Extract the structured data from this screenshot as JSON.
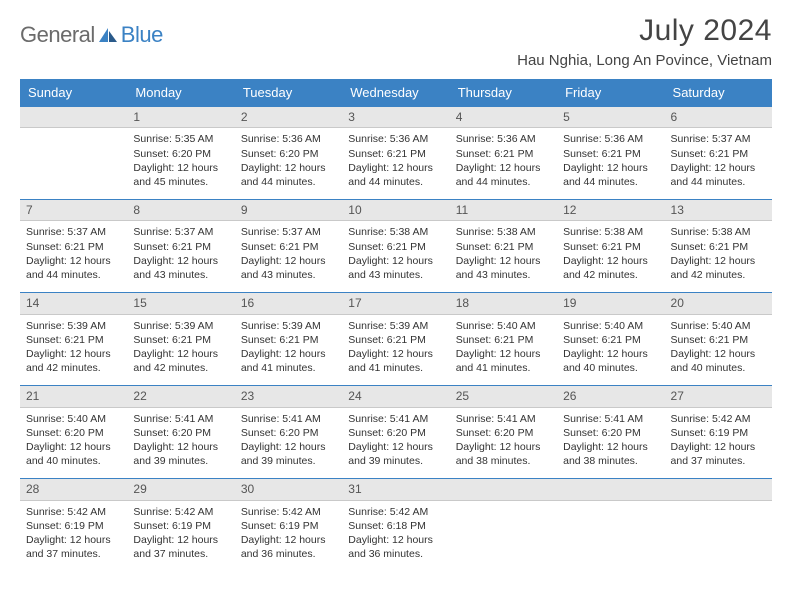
{
  "logo": {
    "prefix": "General",
    "suffix": "Blue"
  },
  "title": "July 2024",
  "subtitle": "Hau Nghia, Long An Povince, Vietnam",
  "colors": {
    "header_bg": "#3b82c4",
    "header_text": "#ffffff",
    "daynum_bg": "#e7e7e7",
    "border_top": "#3b82c4",
    "text": "#333333"
  },
  "weekdays": [
    "Sunday",
    "Monday",
    "Tuesday",
    "Wednesday",
    "Thursday",
    "Friday",
    "Saturday"
  ],
  "weeks": [
    {
      "nums": [
        "",
        "1",
        "2",
        "3",
        "4",
        "5",
        "6"
      ],
      "cells": [
        [],
        [
          "Sunrise: 5:35 AM",
          "Sunset: 6:20 PM",
          "Daylight: 12 hours",
          "and 45 minutes."
        ],
        [
          "Sunrise: 5:36 AM",
          "Sunset: 6:20 PM",
          "Daylight: 12 hours",
          "and 44 minutes."
        ],
        [
          "Sunrise: 5:36 AM",
          "Sunset: 6:21 PM",
          "Daylight: 12 hours",
          "and 44 minutes."
        ],
        [
          "Sunrise: 5:36 AM",
          "Sunset: 6:21 PM",
          "Daylight: 12 hours",
          "and 44 minutes."
        ],
        [
          "Sunrise: 5:36 AM",
          "Sunset: 6:21 PM",
          "Daylight: 12 hours",
          "and 44 minutes."
        ],
        [
          "Sunrise: 5:37 AM",
          "Sunset: 6:21 PM",
          "Daylight: 12 hours",
          "and 44 minutes."
        ]
      ]
    },
    {
      "nums": [
        "7",
        "8",
        "9",
        "10",
        "11",
        "12",
        "13"
      ],
      "cells": [
        [
          "Sunrise: 5:37 AM",
          "Sunset: 6:21 PM",
          "Daylight: 12 hours",
          "and 44 minutes."
        ],
        [
          "Sunrise: 5:37 AM",
          "Sunset: 6:21 PM",
          "Daylight: 12 hours",
          "and 43 minutes."
        ],
        [
          "Sunrise: 5:37 AM",
          "Sunset: 6:21 PM",
          "Daylight: 12 hours",
          "and 43 minutes."
        ],
        [
          "Sunrise: 5:38 AM",
          "Sunset: 6:21 PM",
          "Daylight: 12 hours",
          "and 43 minutes."
        ],
        [
          "Sunrise: 5:38 AM",
          "Sunset: 6:21 PM",
          "Daylight: 12 hours",
          "and 43 minutes."
        ],
        [
          "Sunrise: 5:38 AM",
          "Sunset: 6:21 PM",
          "Daylight: 12 hours",
          "and 42 minutes."
        ],
        [
          "Sunrise: 5:38 AM",
          "Sunset: 6:21 PM",
          "Daylight: 12 hours",
          "and 42 minutes."
        ]
      ]
    },
    {
      "nums": [
        "14",
        "15",
        "16",
        "17",
        "18",
        "19",
        "20"
      ],
      "cells": [
        [
          "Sunrise: 5:39 AM",
          "Sunset: 6:21 PM",
          "Daylight: 12 hours",
          "and 42 minutes."
        ],
        [
          "Sunrise: 5:39 AM",
          "Sunset: 6:21 PM",
          "Daylight: 12 hours",
          "and 42 minutes."
        ],
        [
          "Sunrise: 5:39 AM",
          "Sunset: 6:21 PM",
          "Daylight: 12 hours",
          "and 41 minutes."
        ],
        [
          "Sunrise: 5:39 AM",
          "Sunset: 6:21 PM",
          "Daylight: 12 hours",
          "and 41 minutes."
        ],
        [
          "Sunrise: 5:40 AM",
          "Sunset: 6:21 PM",
          "Daylight: 12 hours",
          "and 41 minutes."
        ],
        [
          "Sunrise: 5:40 AM",
          "Sunset: 6:21 PM",
          "Daylight: 12 hours",
          "and 40 minutes."
        ],
        [
          "Sunrise: 5:40 AM",
          "Sunset: 6:21 PM",
          "Daylight: 12 hours",
          "and 40 minutes."
        ]
      ]
    },
    {
      "nums": [
        "21",
        "22",
        "23",
        "24",
        "25",
        "26",
        "27"
      ],
      "cells": [
        [
          "Sunrise: 5:40 AM",
          "Sunset: 6:20 PM",
          "Daylight: 12 hours",
          "and 40 minutes."
        ],
        [
          "Sunrise: 5:41 AM",
          "Sunset: 6:20 PM",
          "Daylight: 12 hours",
          "and 39 minutes."
        ],
        [
          "Sunrise: 5:41 AM",
          "Sunset: 6:20 PM",
          "Daylight: 12 hours",
          "and 39 minutes."
        ],
        [
          "Sunrise: 5:41 AM",
          "Sunset: 6:20 PM",
          "Daylight: 12 hours",
          "and 39 minutes."
        ],
        [
          "Sunrise: 5:41 AM",
          "Sunset: 6:20 PM",
          "Daylight: 12 hours",
          "and 38 minutes."
        ],
        [
          "Sunrise: 5:41 AM",
          "Sunset: 6:20 PM",
          "Daylight: 12 hours",
          "and 38 minutes."
        ],
        [
          "Sunrise: 5:42 AM",
          "Sunset: 6:19 PM",
          "Daylight: 12 hours",
          "and 37 minutes."
        ]
      ]
    },
    {
      "nums": [
        "28",
        "29",
        "30",
        "31",
        "",
        "",
        ""
      ],
      "cells": [
        [
          "Sunrise: 5:42 AM",
          "Sunset: 6:19 PM",
          "Daylight: 12 hours",
          "and 37 minutes."
        ],
        [
          "Sunrise: 5:42 AM",
          "Sunset: 6:19 PM",
          "Daylight: 12 hours",
          "and 37 minutes."
        ],
        [
          "Sunrise: 5:42 AM",
          "Sunset: 6:19 PM",
          "Daylight: 12 hours",
          "and 36 minutes."
        ],
        [
          "Sunrise: 5:42 AM",
          "Sunset: 6:18 PM",
          "Daylight: 12 hours",
          "and 36 minutes."
        ],
        [],
        [],
        []
      ]
    }
  ]
}
